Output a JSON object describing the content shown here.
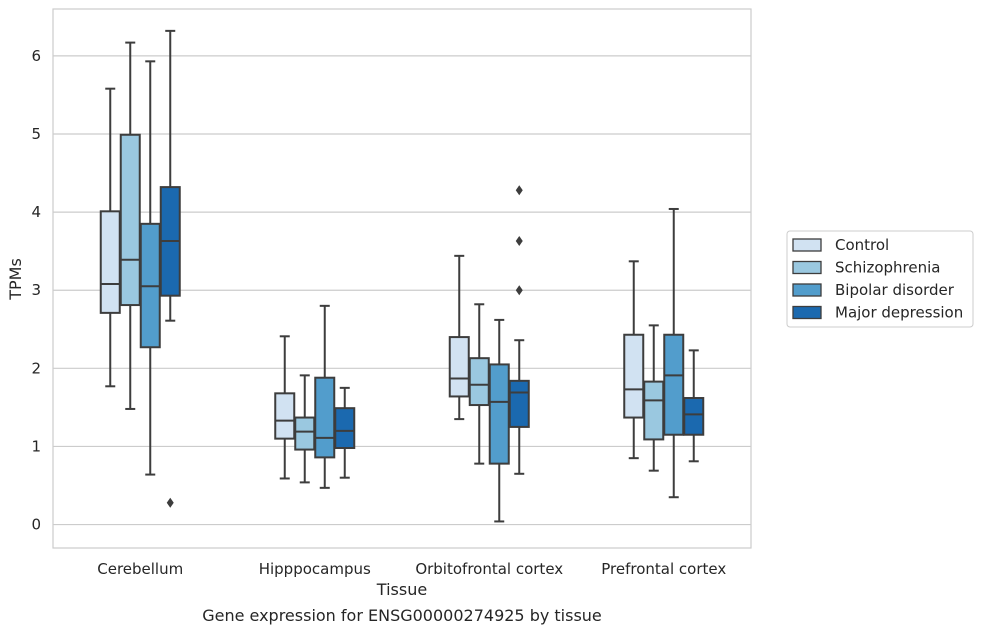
{
  "chart_data": {
    "type": "box",
    "xlabel": "Tissue",
    "ylabel": "TPMs",
    "caption": "Gene expression for ENSG00000274925 by tissue",
    "ylim": [
      -0.3,
      6.6
    ],
    "yticks": [
      0,
      1,
      2,
      3,
      4,
      5,
      6
    ],
    "grid": true,
    "legend_position": "right",
    "categories": [
      "Cerebellum",
      "Hipppocampus",
      "Orbitofrontal cortex",
      "Prefrontal cortex"
    ],
    "series": [
      {
        "name": "Control",
        "color": "#d1e2f2",
        "boxes": [
          {
            "whisker_low": 1.77,
            "q1": 2.71,
            "median": 3.08,
            "q3": 4.01,
            "whisker_high": 5.58,
            "outliers": []
          },
          {
            "whisker_low": 0.59,
            "q1": 1.1,
            "median": 1.33,
            "q3": 1.68,
            "whisker_high": 2.41,
            "outliers": []
          },
          {
            "whisker_low": 1.35,
            "q1": 1.64,
            "median": 1.87,
            "q3": 2.4,
            "whisker_high": 3.44,
            "outliers": []
          },
          {
            "whisker_low": 0.85,
            "q1": 1.37,
            "median": 1.73,
            "q3": 2.43,
            "whisker_high": 3.37,
            "outliers": []
          }
        ]
      },
      {
        "name": "Schizophrenia",
        "color": "#9ac8e0",
        "boxes": [
          {
            "whisker_low": 1.48,
            "q1": 2.81,
            "median": 3.39,
            "q3": 4.99,
            "whisker_high": 6.17,
            "outliers": []
          },
          {
            "whisker_low": 0.54,
            "q1": 0.96,
            "median": 1.19,
            "q3": 1.37,
            "whisker_high": 1.91,
            "outliers": []
          },
          {
            "whisker_low": 0.78,
            "q1": 1.53,
            "median": 1.79,
            "q3": 2.13,
            "whisker_high": 2.82,
            "outliers": []
          },
          {
            "whisker_low": 0.69,
            "q1": 1.09,
            "median": 1.59,
            "q3": 1.83,
            "whisker_high": 2.55,
            "outliers": []
          }
        ]
      },
      {
        "name": "Bipolar disorder",
        "color": "#529dcc",
        "boxes": [
          {
            "whisker_low": 0.64,
            "q1": 2.27,
            "median": 3.05,
            "q3": 3.85,
            "whisker_high": 5.93,
            "outliers": []
          },
          {
            "whisker_low": 0.47,
            "q1": 0.86,
            "median": 1.11,
            "q3": 1.88,
            "whisker_high": 2.8,
            "outliers": []
          },
          {
            "whisker_low": 0.04,
            "q1": 0.78,
            "median": 1.57,
            "q3": 2.05,
            "whisker_high": 2.62,
            "outliers": []
          },
          {
            "whisker_low": 0.35,
            "q1": 1.15,
            "median": 1.91,
            "q3": 2.43,
            "whisker_high": 4.04,
            "outliers": []
          }
        ]
      },
      {
        "name": "Major depression",
        "color": "#1b69af",
        "boxes": [
          {
            "whisker_low": 2.61,
            "q1": 2.93,
            "median": 3.63,
            "q3": 4.32,
            "whisker_high": 6.32,
            "outliers": [
              0.28
            ]
          },
          {
            "whisker_low": 0.6,
            "q1": 0.98,
            "median": 1.2,
            "q3": 1.49,
            "whisker_high": 1.75,
            "outliers": []
          },
          {
            "whisker_low": 0.65,
            "q1": 1.25,
            "median": 1.69,
            "q3": 1.84,
            "whisker_high": 2.36,
            "outliers": [
              4.28,
              3.63,
              3.0
            ]
          },
          {
            "whisker_low": 0.81,
            "q1": 1.15,
            "median": 1.41,
            "q3": 1.62,
            "whisker_high": 2.23,
            "outliers": []
          }
        ]
      }
    ]
  }
}
